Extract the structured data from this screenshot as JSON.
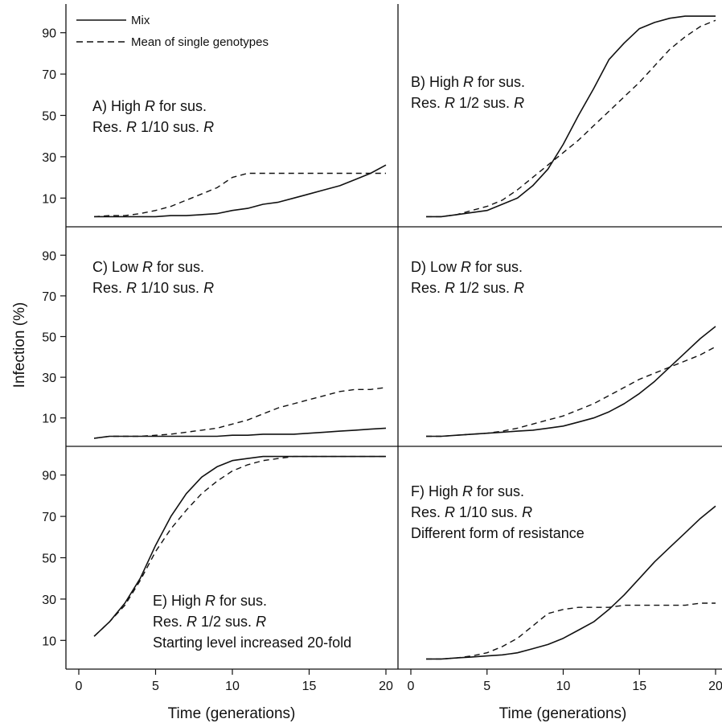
{
  "figure": {
    "ylabel": "Infection (%)",
    "xlabel": "Time (generations)",
    "legend": {
      "entries": [
        {
          "label": "Mix",
          "style": "solid"
        },
        {
          "label": "Mean of single genotypes",
          "style": "dashed"
        }
      ]
    },
    "line_color": "#111111"
  },
  "chart_data": [
    {
      "id": "A",
      "type": "line",
      "annotation": [
        "A) High |R| for sus.",
        "Res. |R| 1/10 sus. |R|"
      ],
      "xlim": [
        0,
        20
      ],
      "ylim": [
        0,
        100
      ],
      "xticks": [],
      "yticks": [
        10,
        30,
        50,
        70,
        90
      ],
      "x": [
        1,
        2,
        3,
        4,
        5,
        6,
        7,
        8,
        9,
        10,
        11,
        12,
        13,
        14,
        15,
        16,
        17,
        18,
        19,
        20
      ],
      "series": [
        {
          "name": "Mix",
          "style": "solid",
          "values": [
            1,
            1,
            1,
            1,
            1,
            1.5,
            1.5,
            2,
            2.5,
            4,
            5,
            7,
            8,
            10,
            12,
            14,
            16,
            19,
            22,
            26
          ]
        },
        {
          "name": "Mean of single genotypes",
          "style": "dashed",
          "values": [
            1,
            1.5,
            1.5,
            2.5,
            4,
            6,
            9,
            12,
            15,
            20,
            22,
            22,
            22,
            22,
            22,
            22,
            22,
            22,
            22,
            22
          ]
        }
      ]
    },
    {
      "id": "B",
      "type": "line",
      "annotation": [
        "B) High |R| for sus.",
        "Res. |R| 1/2 sus. |R|"
      ],
      "xlim": [
        0,
        20
      ],
      "ylim": [
        0,
        100
      ],
      "xticks": [],
      "yticks": [],
      "x": [
        1,
        2,
        3,
        4,
        5,
        6,
        7,
        8,
        9,
        10,
        11,
        12,
        13,
        14,
        15,
        16,
        17,
        18,
        19,
        20
      ],
      "series": [
        {
          "name": "Mix",
          "style": "solid",
          "values": [
            1,
            1,
            2,
            3,
            4,
            7,
            10,
            16,
            24,
            36,
            50,
            63,
            77,
            85,
            92,
            95,
            97,
            98,
            98,
            98
          ]
        },
        {
          "name": "Mean of single genotypes",
          "style": "dashed",
          "values": [
            1,
            1,
            2,
            4,
            6,
            9,
            14,
            20,
            26,
            32,
            38,
            45,
            52,
            59,
            66,
            74,
            82,
            88,
            93,
            96
          ]
        }
      ]
    },
    {
      "id": "C",
      "type": "line",
      "annotation": [
        "C) Low |R| for sus.",
        "Res. |R| 1/10 sus. |R|"
      ],
      "xlim": [
        0,
        20
      ],
      "ylim": [
        0,
        100
      ],
      "xticks": [],
      "yticks": [
        10,
        30,
        50,
        70,
        90
      ],
      "x": [
        1,
        2,
        3,
        4,
        5,
        6,
        7,
        8,
        9,
        10,
        11,
        12,
        13,
        14,
        15,
        16,
        17,
        18,
        19,
        20
      ],
      "series": [
        {
          "name": "Mix",
          "style": "solid",
          "values": [
            0,
            1,
            1,
            1,
            1,
            1,
            1,
            1,
            1,
            1.5,
            1.5,
            2,
            2,
            2,
            2.5,
            3,
            3.5,
            4,
            4.5,
            5
          ]
        },
        {
          "name": "Mean of single genotypes",
          "style": "dashed",
          "values": [
            0,
            1,
            1,
            1,
            1.5,
            2,
            3,
            4,
            5,
            7,
            9,
            12,
            15,
            17,
            19,
            21,
            23,
            24,
            24,
            25
          ]
        }
      ]
    },
    {
      "id": "D",
      "type": "line",
      "annotation": [
        "D) Low |R| for sus.",
        "Res. |R| 1/2 sus. |R|"
      ],
      "xlim": [
        0,
        20
      ],
      "ylim": [
        0,
        100
      ],
      "xticks": [],
      "yticks": [],
      "x": [
        1,
        2,
        3,
        4,
        5,
        6,
        7,
        8,
        9,
        10,
        11,
        12,
        13,
        14,
        15,
        16,
        17,
        18,
        19,
        20
      ],
      "series": [
        {
          "name": "Mix",
          "style": "solid",
          "values": [
            1,
            1,
            1.5,
            2,
            2.5,
            3,
            3.5,
            4,
            5,
            6,
            8,
            10,
            13,
            17,
            22,
            28,
            35,
            42,
            49,
            55
          ]
        },
        {
          "name": "Mean of single genotypes",
          "style": "dashed",
          "values": [
            1,
            1,
            1.5,
            2,
            2.5,
            3.5,
            5,
            7,
            9,
            11,
            14,
            17,
            21,
            25,
            29,
            32,
            35,
            38,
            41,
            45
          ]
        }
      ]
    },
    {
      "id": "E",
      "type": "line",
      "annotation": [
        "E) High |R| for sus.",
        "Res. |R| 1/2 sus. |R|",
        "Starting level increased 20-fold"
      ],
      "xlim": [
        0,
        20
      ],
      "ylim": [
        0,
        100
      ],
      "xticks": [
        0,
        5,
        10,
        15,
        20
      ],
      "yticks": [
        10,
        30,
        50,
        70,
        90
      ],
      "x": [
        1,
        2,
        3,
        4,
        5,
        6,
        7,
        8,
        9,
        10,
        11,
        12,
        13,
        14,
        15,
        16,
        17,
        18,
        19,
        20
      ],
      "series": [
        {
          "name": "Mix",
          "style": "solid",
          "values": [
            12,
            19,
            28,
            40,
            56,
            70,
            81,
            89,
            94,
            97,
            98,
            99,
            99,
            99,
            99,
            99,
            99,
            99,
            99,
            99
          ]
        },
        {
          "name": "Mean of single genotypes",
          "style": "dashed",
          "values": [
            12,
            19,
            27,
            39,
            53,
            64,
            73,
            81,
            87,
            92,
            95,
            97,
            98,
            99,
            99,
            99,
            99,
            99,
            99,
            99
          ]
        }
      ]
    },
    {
      "id": "F",
      "type": "line",
      "annotation": [
        "F) High |R| for sus.",
        "Res. |R| 1/10 sus. |R|",
        "Different form of resistance"
      ],
      "xlim": [
        0,
        20
      ],
      "ylim": [
        0,
        100
      ],
      "xticks": [
        0,
        5,
        10,
        15,
        20
      ],
      "yticks": [],
      "x": [
        1,
        2,
        3,
        4,
        5,
        6,
        7,
        8,
        9,
        10,
        11,
        12,
        13,
        14,
        15,
        16,
        17,
        18,
        19,
        20
      ],
      "series": [
        {
          "name": "Mix",
          "style": "solid",
          "values": [
            1,
            1,
            1.5,
            2,
            2.5,
            3,
            4,
            6,
            8,
            11,
            15,
            19,
            25,
            32,
            40,
            48,
            55,
            62,
            69,
            75
          ]
        },
        {
          "name": "Mean of single genotypes",
          "style": "dashed",
          "values": [
            1,
            1,
            1.5,
            2.5,
            4,
            7,
            11,
            17,
            23,
            25,
            26,
            26,
            26,
            27,
            27,
            27,
            27,
            27,
            28,
            28
          ]
        }
      ]
    }
  ]
}
